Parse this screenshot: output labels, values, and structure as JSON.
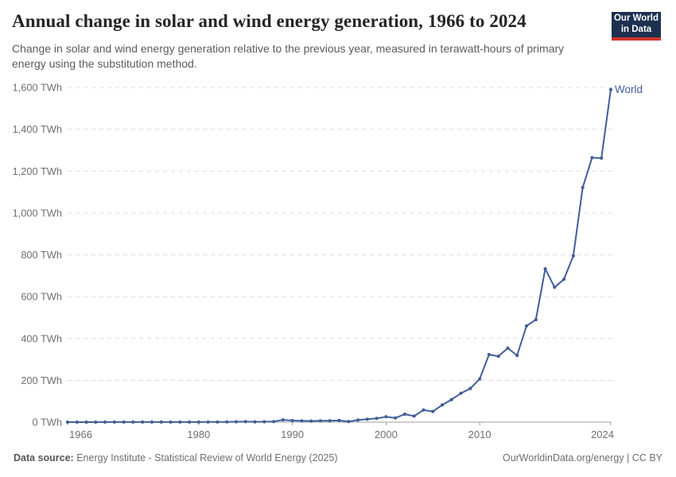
{
  "header": {
    "title": "Annual change in solar and wind energy generation, 1966 to 2024",
    "subtitle": "Change in solar and wind energy generation relative to the previous year, measured in terawatt-hours of primary energy using the substitution method.",
    "logo_line1": "Our World",
    "logo_line2": "in Data"
  },
  "chart_data": {
    "type": "line",
    "title": "Annual change in solar and wind energy generation, 1966 to 2024",
    "xlabel": "",
    "ylabel": "",
    "unit": "TWh",
    "xlim": [
      1966,
      2024
    ],
    "ylim": [
      0,
      1600
    ],
    "grid": "horizontal-dashed",
    "legend_position": "end-of-line",
    "entity_label": "World",
    "line_color": "#415e99",
    "x_ticks": [
      1966,
      1980,
      1990,
      2000,
      2010,
      2024
    ],
    "y_ticks": [
      {
        "value": 0,
        "label": "0 TWh"
      },
      {
        "value": 200,
        "label": "200 TWh"
      },
      {
        "value": 400,
        "label": "400 TWh"
      },
      {
        "value": 600,
        "label": "600 TWh"
      },
      {
        "value": 800,
        "label": "800 TWh"
      },
      {
        "value": 1000,
        "label": "1,000 TWh"
      },
      {
        "value": 1200,
        "label": "1,200 TWh"
      },
      {
        "value": 1400,
        "label": "1,400 TWh"
      },
      {
        "value": 1600,
        "label": "1,600 TWh"
      }
    ],
    "series": [
      {
        "name": "World",
        "x": [
          1966,
          1967,
          1968,
          1969,
          1970,
          1971,
          1972,
          1973,
          1974,
          1975,
          1976,
          1977,
          1978,
          1979,
          1980,
          1981,
          1982,
          1983,
          1984,
          1985,
          1986,
          1987,
          1988,
          1989,
          1990,
          1991,
          1992,
          1993,
          1994,
          1995,
          1996,
          1997,
          1998,
          1999,
          2000,
          2001,
          2002,
          2003,
          2004,
          2005,
          2006,
          2007,
          2008,
          2009,
          2010,
          2011,
          2012,
          2013,
          2014,
          2015,
          2016,
          2017,
          2018,
          2019,
          2020,
          2021,
          2022,
          2023,
          2024
        ],
        "values": [
          0.1,
          0.1,
          0.1,
          0.1,
          0.2,
          0.2,
          0.2,
          0.2,
          0.3,
          0.3,
          0.3,
          0.4,
          0.4,
          0.5,
          0.5,
          0.7,
          0.9,
          1.3,
          1.8,
          2.1,
          1.7,
          1.9,
          2.7,
          11,
          7.5,
          6,
          5.5,
          6.5,
          7,
          8,
          3,
          10,
          14,
          18,
          26,
          20,
          38,
          29,
          58,
          51,
          82,
          108,
          138,
          161,
          206,
          323,
          315,
          354,
          319,
          460,
          490,
          733,
          645,
          683,
          795,
          1122,
          1264,
          1262,
          1590
        ]
      }
    ]
  },
  "footer": {
    "source_label": "Data source:",
    "source_text": " Energy Institute - Statistical Review of World Energy (2025)",
    "link": "OurWorldinData.org/energy",
    "separator": " | ",
    "license": "CC BY"
  },
  "colors": {
    "line": "#415e99",
    "axis": "#9e9e9e",
    "gridline": "#dcdcdc",
    "tick_label": "#6f6f6f",
    "logo_bg": "#1d3050",
    "logo_stripe": "#d0352c"
  }
}
